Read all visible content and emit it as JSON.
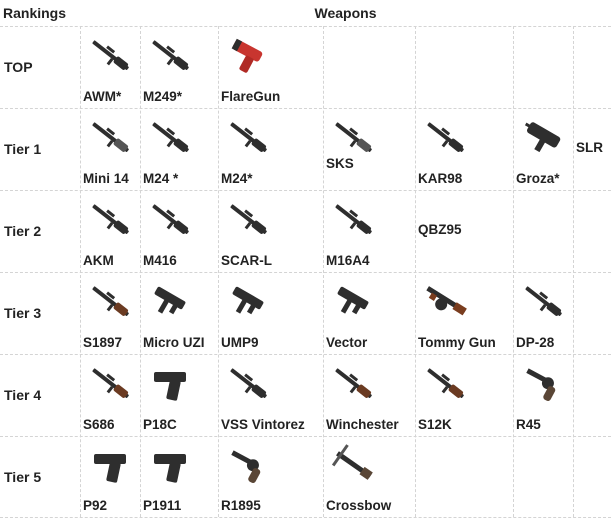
{
  "header": {
    "rankings": "Rankings",
    "weapons": "Weapons"
  },
  "rows": [
    {
      "tier": "TOP",
      "weapons": [
        {
          "name": "AWM*",
          "icon": "sniper-rifle-icon"
        },
        {
          "name": "M249*",
          "icon": "machine-gun-icon"
        },
        {
          "name": "FlareGun",
          "icon": "flare-gun-icon"
        }
      ]
    },
    {
      "tier": "Tier 1",
      "weapons": [
        {
          "name": "Mini 14",
          "icon": "dmr-icon"
        },
        {
          "name": "M24 *",
          "icon": "sniper-rifle-icon"
        },
        {
          "name": "M24*",
          "icon": "sniper-rifle-icon"
        },
        {
          "name": "SKS",
          "icon": "dmr-icon"
        },
        {
          "name": "KAR98",
          "icon": "bolt-rifle-icon"
        },
        {
          "name": "Groza*",
          "icon": "bullpup-rifle-icon"
        },
        {
          "name": "SLR",
          "icon": ""
        }
      ]
    },
    {
      "tier": "Tier 2",
      "weapons": [
        {
          "name": "AKM",
          "icon": "assault-rifle-icon"
        },
        {
          "name": "M416",
          "icon": "assault-rifle-icon"
        },
        {
          "name": "SCAR-L",
          "icon": "assault-rifle-icon"
        },
        {
          "name": "M16A4",
          "icon": "assault-rifle-icon"
        },
        {
          "name": "QBZ95",
          "icon": ""
        }
      ]
    },
    {
      "tier": "Tier 3",
      "weapons": [
        {
          "name": "S1897",
          "icon": "shotgun-icon"
        },
        {
          "name": "Micro UZI",
          "icon": "smg-icon"
        },
        {
          "name": "UMP9",
          "icon": "smg-icon"
        },
        {
          "name": "Vector",
          "icon": "smg-icon"
        },
        {
          "name": "Tommy Gun",
          "icon": "tommy-gun-icon"
        },
        {
          "name": "DP-28",
          "icon": "light-machine-gun-icon"
        }
      ]
    },
    {
      "tier": "Tier 4",
      "weapons": [
        {
          "name": "S686",
          "icon": "double-barrel-shotgun-icon"
        },
        {
          "name": "P18C",
          "icon": "pistol-icon"
        },
        {
          "name": "VSS Vintorez",
          "icon": "sniper-rifle-icon"
        },
        {
          "name": "Winchester",
          "icon": "lever-rifle-icon"
        },
        {
          "name": "S12K",
          "icon": "shotgun-icon"
        },
        {
          "name": "R45",
          "icon": "revolver-icon"
        }
      ]
    },
    {
      "tier": "Tier 5",
      "weapons": [
        {
          "name": "P92",
          "icon": "pistol-icon"
        },
        {
          "name": "P1911",
          "icon": "pistol-icon"
        },
        {
          "name": "R1895",
          "icon": "revolver-icon"
        },
        {
          "name": "Crossbow",
          "icon": "crossbow-icon"
        }
      ]
    }
  ]
}
